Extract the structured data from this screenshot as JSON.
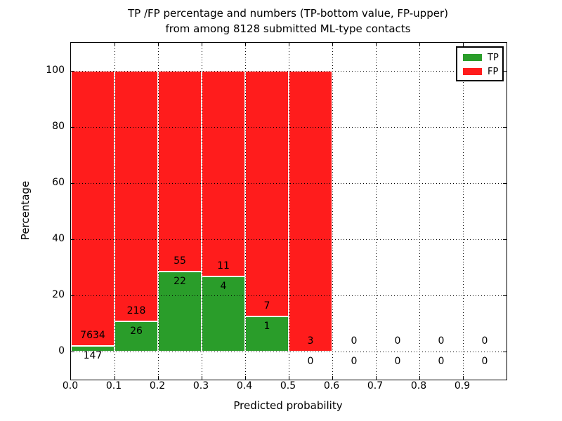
{
  "title": {
    "line1": "TP /FP percentage and numbers (TP-bottom value, FP-upper)",
    "line2": "from among 8128 submitted ML-type contacts"
  },
  "chart_data": {
    "type": "bar",
    "stacked": true,
    "title": "TP /FP percentage and numbers (TP-bottom value, FP-upper) from among 8128 submitted ML-type contacts",
    "xlabel": "Predicted probability",
    "ylabel": "Percentage",
    "xlim": [
      0.0,
      1.0
    ],
    "ylim": [
      -10,
      110
    ],
    "x_ticks": [
      "0.0",
      "0.1",
      "0.2",
      "0.3",
      "0.4",
      "0.5",
      "0.6",
      "0.7",
      "0.8",
      "0.9"
    ],
    "y_ticks": [
      0,
      20,
      40,
      60,
      80,
      100
    ],
    "grid": "dotted, drawn above bars",
    "total_contacts": 8128,
    "annotation_rule": "FP count printed above TP/FP boundary, TP count printed below it, centered on each bin",
    "bins": [
      {
        "range": [
          0.0,
          0.1
        ],
        "tp": 147,
        "fp": 7634,
        "tp_pct": 1.89
      },
      {
        "range": [
          0.1,
          0.2
        ],
        "tp": 26,
        "fp": 218,
        "tp_pct": 10.66
      },
      {
        "range": [
          0.2,
          0.3
        ],
        "tp": 22,
        "fp": 55,
        "tp_pct": 28.57
      },
      {
        "range": [
          0.3,
          0.4
        ],
        "tp": 4,
        "fp": 11,
        "tp_pct": 26.67
      },
      {
        "range": [
          0.4,
          0.5
        ],
        "tp": 1,
        "fp": 7,
        "tp_pct": 12.5
      },
      {
        "range": [
          0.5,
          0.6
        ],
        "tp": 0,
        "fp": 3,
        "tp_pct": 0.0
      },
      {
        "range": [
          0.6,
          0.7
        ],
        "tp": 0,
        "fp": 0,
        "tp_pct": null
      },
      {
        "range": [
          0.7,
          0.8
        ],
        "tp": 0,
        "fp": 0,
        "tp_pct": null
      },
      {
        "range": [
          0.8,
          0.9
        ],
        "tp": 0,
        "fp": 0,
        "tp_pct": null
      },
      {
        "range": [
          0.9,
          1.0
        ],
        "tp": 0,
        "fp": 0,
        "tp_pct": null
      }
    ],
    "legend": {
      "position": "upper right",
      "entries": [
        {
          "label": "TP",
          "color": "#2a9d2a"
        },
        {
          "label": "FP",
          "color": "#ff1c1c"
        }
      ]
    },
    "colors": {
      "tp": "#2a9d2a",
      "fp": "#ff1c1c",
      "bar_edge": "#ffffff",
      "text": "#000000"
    }
  }
}
